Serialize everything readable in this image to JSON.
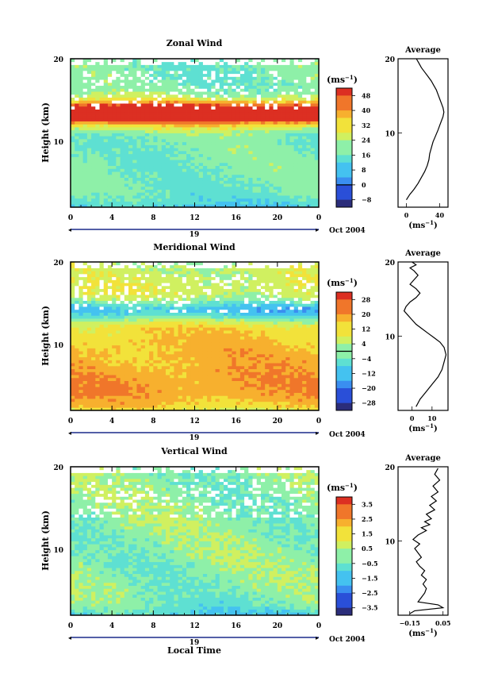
{
  "chart_data": [
    {
      "type": "heatmap",
      "title": "Zonal Wind",
      "xlabel": "",
      "ylabel": "Height (km)",
      "xlim": [
        0,
        24
      ],
      "ylim": [
        0,
        20
      ],
      "xticks": [
        "0",
        "4",
        "8",
        "12",
        "16",
        "20",
        "0"
      ],
      "yticks": [
        "10",
        "20"
      ],
      "date_day": "19",
      "date_label": "Oct 2004",
      "colorbar": {
        "unit_base": "(ms",
        "unit_exp": "−1",
        "unit_close": ")",
        "ticks": [
          "48",
          "40",
          "32",
          "24",
          "16",
          "8",
          "0",
          "−8"
        ],
        "range": [
          -12,
          52
        ],
        "zero_line_value": 0
      },
      "profile": {
        "title": "Average",
        "yticks": [
          "10",
          "20"
        ],
        "xticks": [
          "0",
          "40"
        ],
        "xlim": [
          -10,
          50
        ],
        "unit_base": "(ms",
        "unit_exp": "−1",
        "unit_close": ")",
        "x": [
          0,
          4,
          9,
          14,
          18,
          22,
          25,
          27,
          28,
          30,
          32,
          35,
          38,
          40,
          42,
          44,
          45,
          44,
          42,
          40,
          38,
          36,
          33,
          30,
          26,
          22,
          18,
          15,
          12
        ],
        "y": [
          1,
          1.7,
          2.4,
          3.2,
          4,
          4.8,
          5.6,
          6.4,
          7.2,
          8,
          8.8,
          9.6,
          10.4,
          11,
          11.6,
          12.2,
          12.8,
          13.4,
          14,
          14.6,
          15.2,
          15.8,
          16.4,
          17,
          17.6,
          18.2,
          18.8,
          19.4,
          20
        ]
      },
      "field_model": {
        "base": 18,
        "gradient": 0,
        "jet_value": 46,
        "jet_height": 12.7,
        "jet_width": 1.6,
        "surface_value": -8,
        "noise": 5
      }
    },
    {
      "type": "heatmap",
      "title": "Meridional Wind",
      "xlabel": "",
      "ylabel": "Height (km)",
      "xlim": [
        0,
        24
      ],
      "ylim": [
        0,
        20
      ],
      "xticks": [
        "0",
        "4",
        "8",
        "12",
        "16",
        "20",
        "0"
      ],
      "yticks": [
        "10",
        "20"
      ],
      "date_day": "19",
      "date_label": "Oct 2004",
      "colorbar": {
        "unit_base": "(ms",
        "unit_exp": "−1",
        "unit_close": ")",
        "ticks": [
          "28",
          "20",
          "12",
          "4",
          "−4",
          "−12",
          "−20",
          "−28"
        ],
        "range": [
          -32,
          32
        ],
        "zero_line_value": 0
      },
      "profile": {
        "title": "Average",
        "yticks": [
          "10",
          "20"
        ],
        "xticks": [
          "0",
          "10"
        ],
        "xlim": [
          -7,
          18
        ],
        "unit_base": "(ms",
        "unit_exp": "−1",
        "unit_close": ")",
        "x": [
          2,
          4,
          7,
          10,
          13,
          15,
          16,
          17,
          16,
          14,
          11,
          8,
          5,
          2,
          0,
          -2,
          -4,
          -3,
          -1,
          2,
          4,
          2,
          -1,
          1,
          3,
          1,
          -1,
          2,
          0
        ],
        "y": [
          0.5,
          1.5,
          2.5,
          3.5,
          4.5,
          5.5,
          6.5,
          7.5,
          8.5,
          9.2,
          9.8,
          10.4,
          11,
          11.6,
          12.2,
          12.8,
          13.4,
          14,
          14.6,
          15.2,
          15.8,
          16.4,
          17,
          17.6,
          18.2,
          18.8,
          19.2,
          19.6,
          20
        ]
      },
      "field_model": {
        "base": 14,
        "gradient": -1.0,
        "jet_value": -22,
        "jet_height": 13.5,
        "jet_width": 1.4,
        "surface_value": -16,
        "noise": 5
      }
    },
    {
      "type": "heatmap",
      "title": "Vertical Wind",
      "xlabel": "Local Time",
      "ylabel": "Height (km)",
      "xlim": [
        0,
        24
      ],
      "ylim": [
        0,
        20
      ],
      "xticks": [
        "0",
        "4",
        "8",
        "12",
        "16",
        "20",
        "0"
      ],
      "yticks": [
        "10",
        "20"
      ],
      "date_day": "19",
      "date_label": "Oct 2004",
      "colorbar": {
        "unit_base": "(ms",
        "unit_exp": "−1",
        "unit_close": ")",
        "ticks": [
          "3.5",
          "2.5",
          "1.5",
          "0.5",
          "−0.5",
          "−1.5",
          "−2.5",
          "−3.5"
        ],
        "range": [
          -4,
          4
        ],
        "zero_line_value": null
      },
      "profile": {
        "title": "Average",
        "yticks": [
          "10",
          "20"
        ],
        "xticks": [
          "−0.15",
          "0.05"
        ],
        "xlim": [
          -0.22,
          0.08
        ],
        "unit_base": "(ms",
        "unit_exp": "−1",
        "unit_close": ")",
        "x": [
          -0.15,
          -0.12,
          0.05,
          0.02,
          -0.1,
          -0.08,
          -0.06,
          -0.05,
          -0.07,
          -0.05,
          -0.08,
          -0.06,
          -0.09,
          -0.11,
          -0.08,
          -0.1,
          -0.12,
          -0.09,
          -0.13,
          -0.1,
          -0.05,
          -0.08,
          -0.03,
          -0.06,
          -0.02,
          -0.05,
          0,
          -0.03,
          0.01,
          -0.02,
          0.02,
          -0.01,
          0.03,
          0,
          0.02
        ],
        "y": [
          0.2,
          0.6,
          1,
          1.4,
          1.8,
          2.4,
          3,
          3.6,
          4.2,
          4.8,
          5.4,
          6,
          6.6,
          7.2,
          7.8,
          8.4,
          9,
          9.6,
          10.2,
          10.8,
          11.4,
          11.8,
          12.2,
          12.6,
          13,
          13.6,
          14.2,
          14.8,
          15.4,
          16,
          16.6,
          17.4,
          18.2,
          19,
          19.8
        ]
      },
      "field_model": {
        "base": 0.0,
        "gradient": 0,
        "jet_value": 0,
        "jet_height": 12,
        "jet_width": 1,
        "surface_value": -1.2,
        "noise": 0.8
      }
    }
  ]
}
